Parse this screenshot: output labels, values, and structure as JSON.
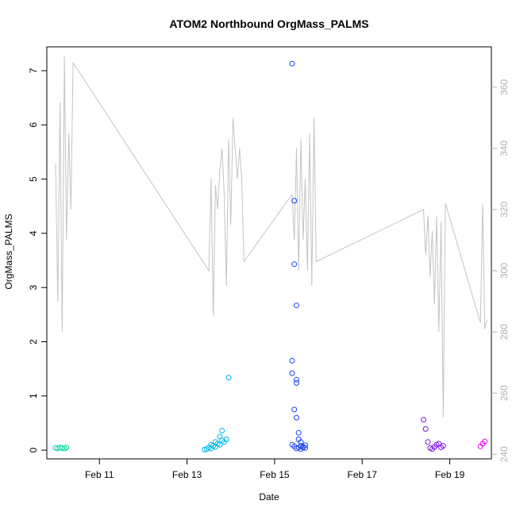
{
  "chart_data": {
    "type": "scatter",
    "title": "ATOM2 Northbound OrgMass_PALMS",
    "xlabel": "Date",
    "ylabel": "OrgMass_PALMS",
    "x_ticks": [
      "Feb 11",
      "Feb 13",
      "Feb 15",
      "Feb 17",
      "Feb 19"
    ],
    "y_ticks": [
      "0",
      "1",
      "2",
      "3",
      "4",
      "5",
      "6",
      "7"
    ],
    "y2_ticks": [
      "240",
      "260",
      "280",
      "300",
      "320",
      "340",
      "360"
    ],
    "ylim": [
      0,
      7
    ],
    "y2lim": [
      240,
      365
    ],
    "grid": false,
    "series": [
      {
        "color": "#00d9a0",
        "x": [
          "Feb 10 00:00",
          "Feb 10 01:12",
          "Feb 10 02:24",
          "Feb 10 03:36",
          "Feb 10 04:48",
          "Feb 10 06:00"
        ],
        "values": [
          0.04,
          0.03,
          0.05,
          0.04,
          0.03,
          0.05
        ]
      },
      {
        "color": "#00b7ee",
        "x": [
          "Feb 13 12:00",
          "Feb 13 13:12",
          "Feb 13 14:24",
          "Feb 13 15:36",
          "Feb 13 16:48",
          "Feb 13 18:00",
          "Feb 13 19:12",
          "Feb 13 20:24",
          "Feb 13 21:36",
          "Feb 13 22:48",
          "Feb 13 09:36",
          "Feb 13 10:48",
          "Feb 13 13:12",
          "Feb 13 15:36",
          "Feb 13 18:00",
          "Feb 13 19:12"
        ],
        "values": [
          0.05,
          0.1,
          0.08,
          0.15,
          0.12,
          0.1,
          0.18,
          0.15,
          0.2,
          1.34,
          0.01,
          0.02,
          0.03,
          0.06,
          0.25,
          0.36
        ]
      },
      {
        "color": "#1c45f0",
        "x": [
          "Feb 15 09:36",
          "Feb 15 09:36",
          "Feb 15 10:48",
          "Feb 15 10:48",
          "Feb 15 12:00",
          "Feb 15 12:00",
          "Feb 15 13:12",
          "Feb 15 14:24",
          "Feb 15 12:00",
          "Feb 15 09:36",
          "Feb 15 10:48",
          "Feb 15 12:00",
          "Feb 15 13:12",
          "Feb 15 14:24",
          "Feb 15 15:36",
          "Feb 15 16:48",
          "Feb 15 09:36",
          "Feb 15 10:48",
          "Feb 15 12:00",
          "Feb 15 13:12",
          "Feb 15 14:24",
          "Feb 15 15:36",
          "Feb 15 16:48"
        ],
        "values": [
          7.13,
          1.65,
          4.6,
          3.43,
          2.67,
          1.3,
          0.2,
          0.08,
          1.24,
          1.42,
          0.75,
          0.6,
          0.32,
          0.15,
          0.05,
          0.04,
          0.1,
          0.07,
          0.03,
          0.05,
          0.02,
          0.06,
          0.09
        ]
      },
      {
        "color": "#7a12e6",
        "x": [
          "Feb 18 09:36",
          "Feb 18 10:48",
          "Feb 18 12:00",
          "Feb 18 13:12",
          "Feb 18 14:24",
          "Feb 18 15:36",
          "Feb 18 16:48",
          "Feb 18 18:00",
          "Feb 18 19:12",
          "Feb 18 20:24"
        ],
        "values": [
          0.56,
          0.39,
          0.15,
          0.04,
          0.02,
          0.06,
          0.1,
          0.12,
          0.05,
          0.08
        ]
      },
      {
        "color": "#e010e8",
        "x": [
          "Feb 19 16:48",
          "Feb 19 18:00",
          "Feb 19 19:12"
        ],
        "values": [
          0.07,
          0.12,
          0.16
        ]
      }
    ],
    "line_series": {
      "axis": "right",
      "color": "#c4c4c4",
      "x": [
        "Feb 10 00:00",
        "Feb 10 01:12",
        "Feb 10 02:24",
        "Feb 10 03:36",
        "Feb 10 04:48",
        "Feb 10 06:00",
        "Feb 10 07:12",
        "Feb 10 08:24",
        "Feb 10 09:36",
        "Feb 13 12:00",
        "Feb 13 13:12",
        "Feb 13 14:24",
        "Feb 13 15:36",
        "Feb 13 16:48",
        "Feb 13 18:00",
        "Feb 13 19:12",
        "Feb 13 20:24",
        "Feb 13 21:36",
        "Feb 13 22:48",
        "Feb 14 00:00",
        "Feb 14 01:12",
        "Feb 14 02:24",
        "Feb 14 03:36",
        "Feb 14 04:48",
        "Feb 14 06:00",
        "Feb 14 07:12",
        "Feb 15 09:36",
        "Feb 15 10:48",
        "Feb 15 12:00",
        "Feb 15 13:12",
        "Feb 15 14:24",
        "Feb 15 15:36",
        "Feb 15 16:48",
        "Feb 15 18:00",
        "Feb 15 19:12",
        "Feb 15 20:24",
        "Feb 15 21:36",
        "Feb 15 22:48",
        "Feb 18 09:36",
        "Feb 18 10:48",
        "Feb 18 12:00",
        "Feb 18 13:12",
        "Feb 18 14:24",
        "Feb 18 15:36",
        "Feb 18 16:48",
        "Feb 18 18:00",
        "Feb 18 19:12",
        "Feb 18 20:24",
        "Feb 18 21:36",
        "Feb 19 16:48",
        "Feb 19 18:00",
        "Feb 19 19:12",
        "Feb 19 20:24"
      ],
      "values": [
        335,
        290,
        355,
        280,
        370,
        310,
        345,
        320,
        368,
        300,
        330,
        285,
        328,
        320,
        333,
        340,
        325,
        295,
        343,
        315,
        350,
        340,
        330,
        340,
        330,
        303,
        325,
        310,
        340,
        300,
        343,
        310,
        330,
        300,
        345,
        295,
        350,
        303,
        320,
        305,
        318,
        298,
        313,
        289,
        318,
        280,
        316,
        252,
        322,
        283,
        322,
        281,
        284
      ]
    }
  }
}
